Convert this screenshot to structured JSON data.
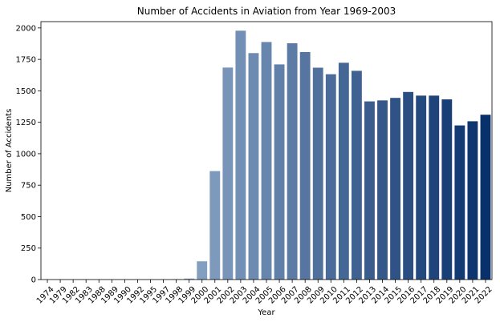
{
  "chart_data": {
    "type": "bar",
    "title": "Number of Accidents in Aviation from Year 1969-2003",
    "xlabel": "Year",
    "ylabel": "Number of Accidents",
    "ylim": [
      0,
      2050
    ],
    "yticks": [
      0,
      250,
      500,
      750,
      1000,
      1250,
      1500,
      1750,
      2000
    ],
    "grid": false,
    "palette": "Blues",
    "categories": [
      "1974",
      "1979",
      "1982",
      "1983",
      "1988",
      "1989",
      "1990",
      "1992",
      "1995",
      "1997",
      "1998",
      "1999",
      "2000",
      "2001",
      "2002",
      "2003",
      "2004",
      "2005",
      "2006",
      "2007",
      "2008",
      "2009",
      "2010",
      "2011",
      "2012",
      "2013",
      "2014",
      "2015",
      "2016",
      "2017",
      "2018",
      "2019",
      "2020",
      "2021",
      "2022"
    ],
    "values": [
      1,
      2,
      1,
      2,
      1,
      1,
      1,
      1,
      1,
      1,
      3,
      8,
      145,
      862,
      1685,
      1978,
      1800,
      1888,
      1710,
      1878,
      1808,
      1684,
      1632,
      1723,
      1659,
      1416,
      1424,
      1444,
      1491,
      1462,
      1462,
      1432,
      1225,
      1258,
      1310
    ]
  }
}
